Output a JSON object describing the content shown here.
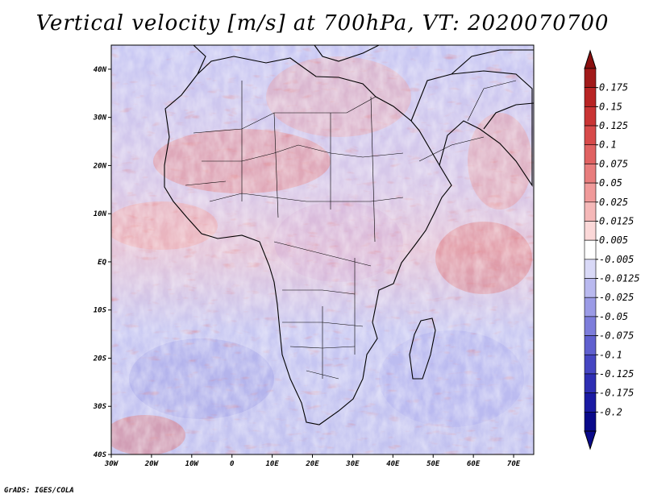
{
  "title": "Vertical velocity [m/s] at 700hPa, VT: 2020070700",
  "credit": "GrADS: IGES/COLA",
  "map": {
    "lon_ticks": [
      "30W",
      "20W",
      "10W",
      "0",
      "10E",
      "20E",
      "30E",
      "40E",
      "50E",
      "60E",
      "70E"
    ],
    "lat_ticks": [
      "40N",
      "30N",
      "20N",
      "10N",
      "EQ",
      "10S",
      "20S",
      "30S",
      "40S"
    ],
    "lon_range": [
      -30,
      75
    ],
    "lat_range": [
      -40,
      45
    ]
  },
  "colorbar": {
    "labels": [
      "0.175",
      "0.15",
      "0.125",
      "0.1",
      "0.075",
      "0.05",
      "0.025",
      "0.0125",
      "0.005",
      "-0.005",
      "-0.0125",
      "-0.025",
      "-0.05",
      "-0.075",
      "-0.1",
      "-0.125",
      "-0.175",
      "-0.2"
    ],
    "colors": [
      "#a11a1a",
      "#b82424",
      "#c93434",
      "#d74a4a",
      "#e06262",
      "#e87d7d",
      "#f09a9a",
      "#f5b8b8",
      "#fbd8d8",
      "#ffffff",
      "#d9d9f7",
      "#b9b9ef",
      "#9b9be6",
      "#7d7ddb",
      "#6060cf",
      "#4646c2",
      "#2e2eb3",
      "#1a1aa3",
      "#0a0a8a"
    ],
    "top_arrow_color": "#8a1010",
    "bottom_arrow_color": "#0a0a8a"
  }
}
